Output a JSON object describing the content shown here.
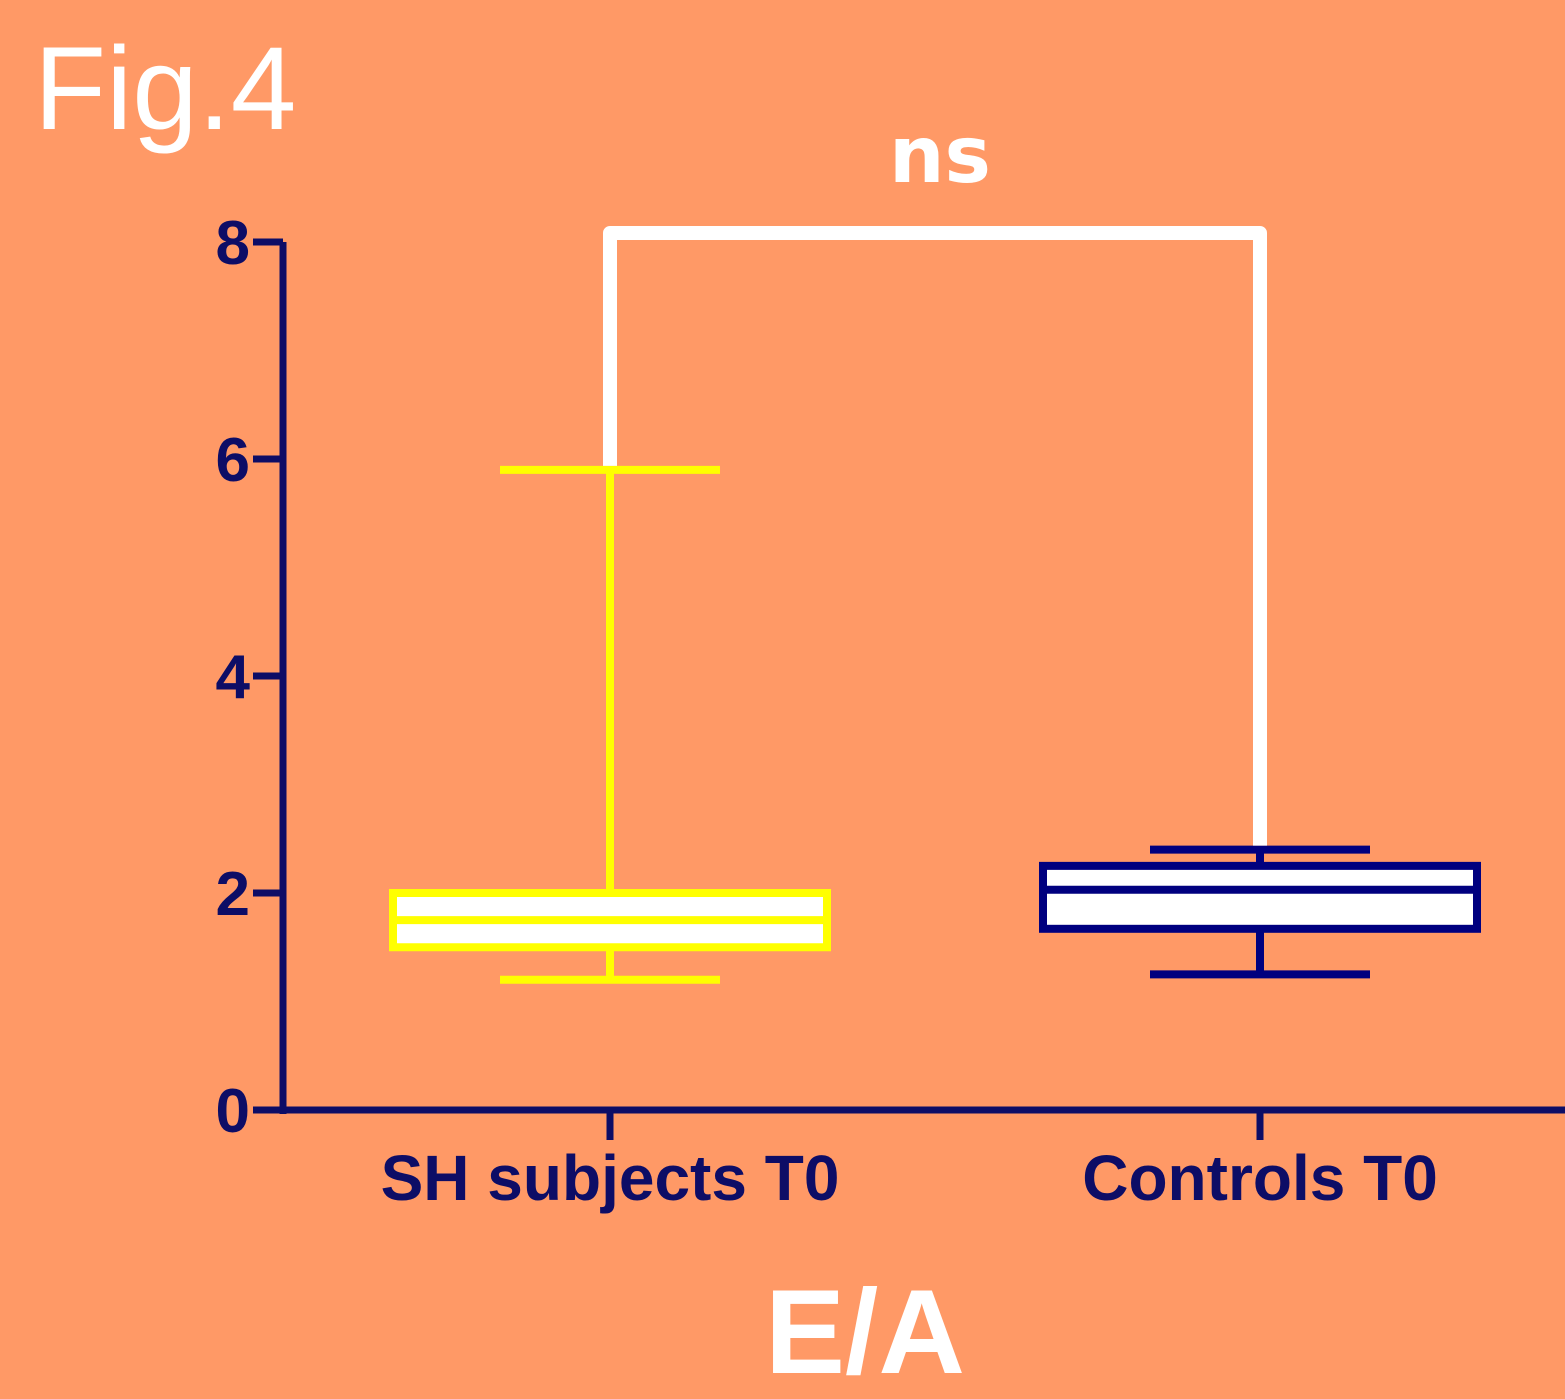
{
  "figure_label": "Fig.4",
  "chart_data": {
    "type": "box",
    "title": "",
    "xlabel": "E/A",
    "ylabel": "",
    "ylim": [
      0,
      8
    ],
    "yticks": [
      "0",
      "2",
      "4",
      "6",
      "8"
    ],
    "categories": [
      "SH subjects T0",
      "Controls T0"
    ],
    "boxes": [
      {
        "category": "SH subjects T0",
        "min": 1.2,
        "q1": 1.5,
        "median": 1.75,
        "q3": 2.0,
        "max": 5.9,
        "color": "#FFFF00",
        "fill": "#FFFFFF"
      },
      {
        "category": "Controls T0",
        "min": 1.25,
        "q1": 1.67,
        "median": 2.03,
        "q3": 2.25,
        "max": 2.4,
        "color": "#00007F",
        "fill": "#FFFFFF"
      }
    ],
    "significance": {
      "label": "ns",
      "between": [
        "SH subjects T0",
        "Controls T0"
      ]
    },
    "colors": {
      "background": "#FF9966",
      "axis": "#0D0D66",
      "bracket": "#FFFFFF"
    }
  }
}
